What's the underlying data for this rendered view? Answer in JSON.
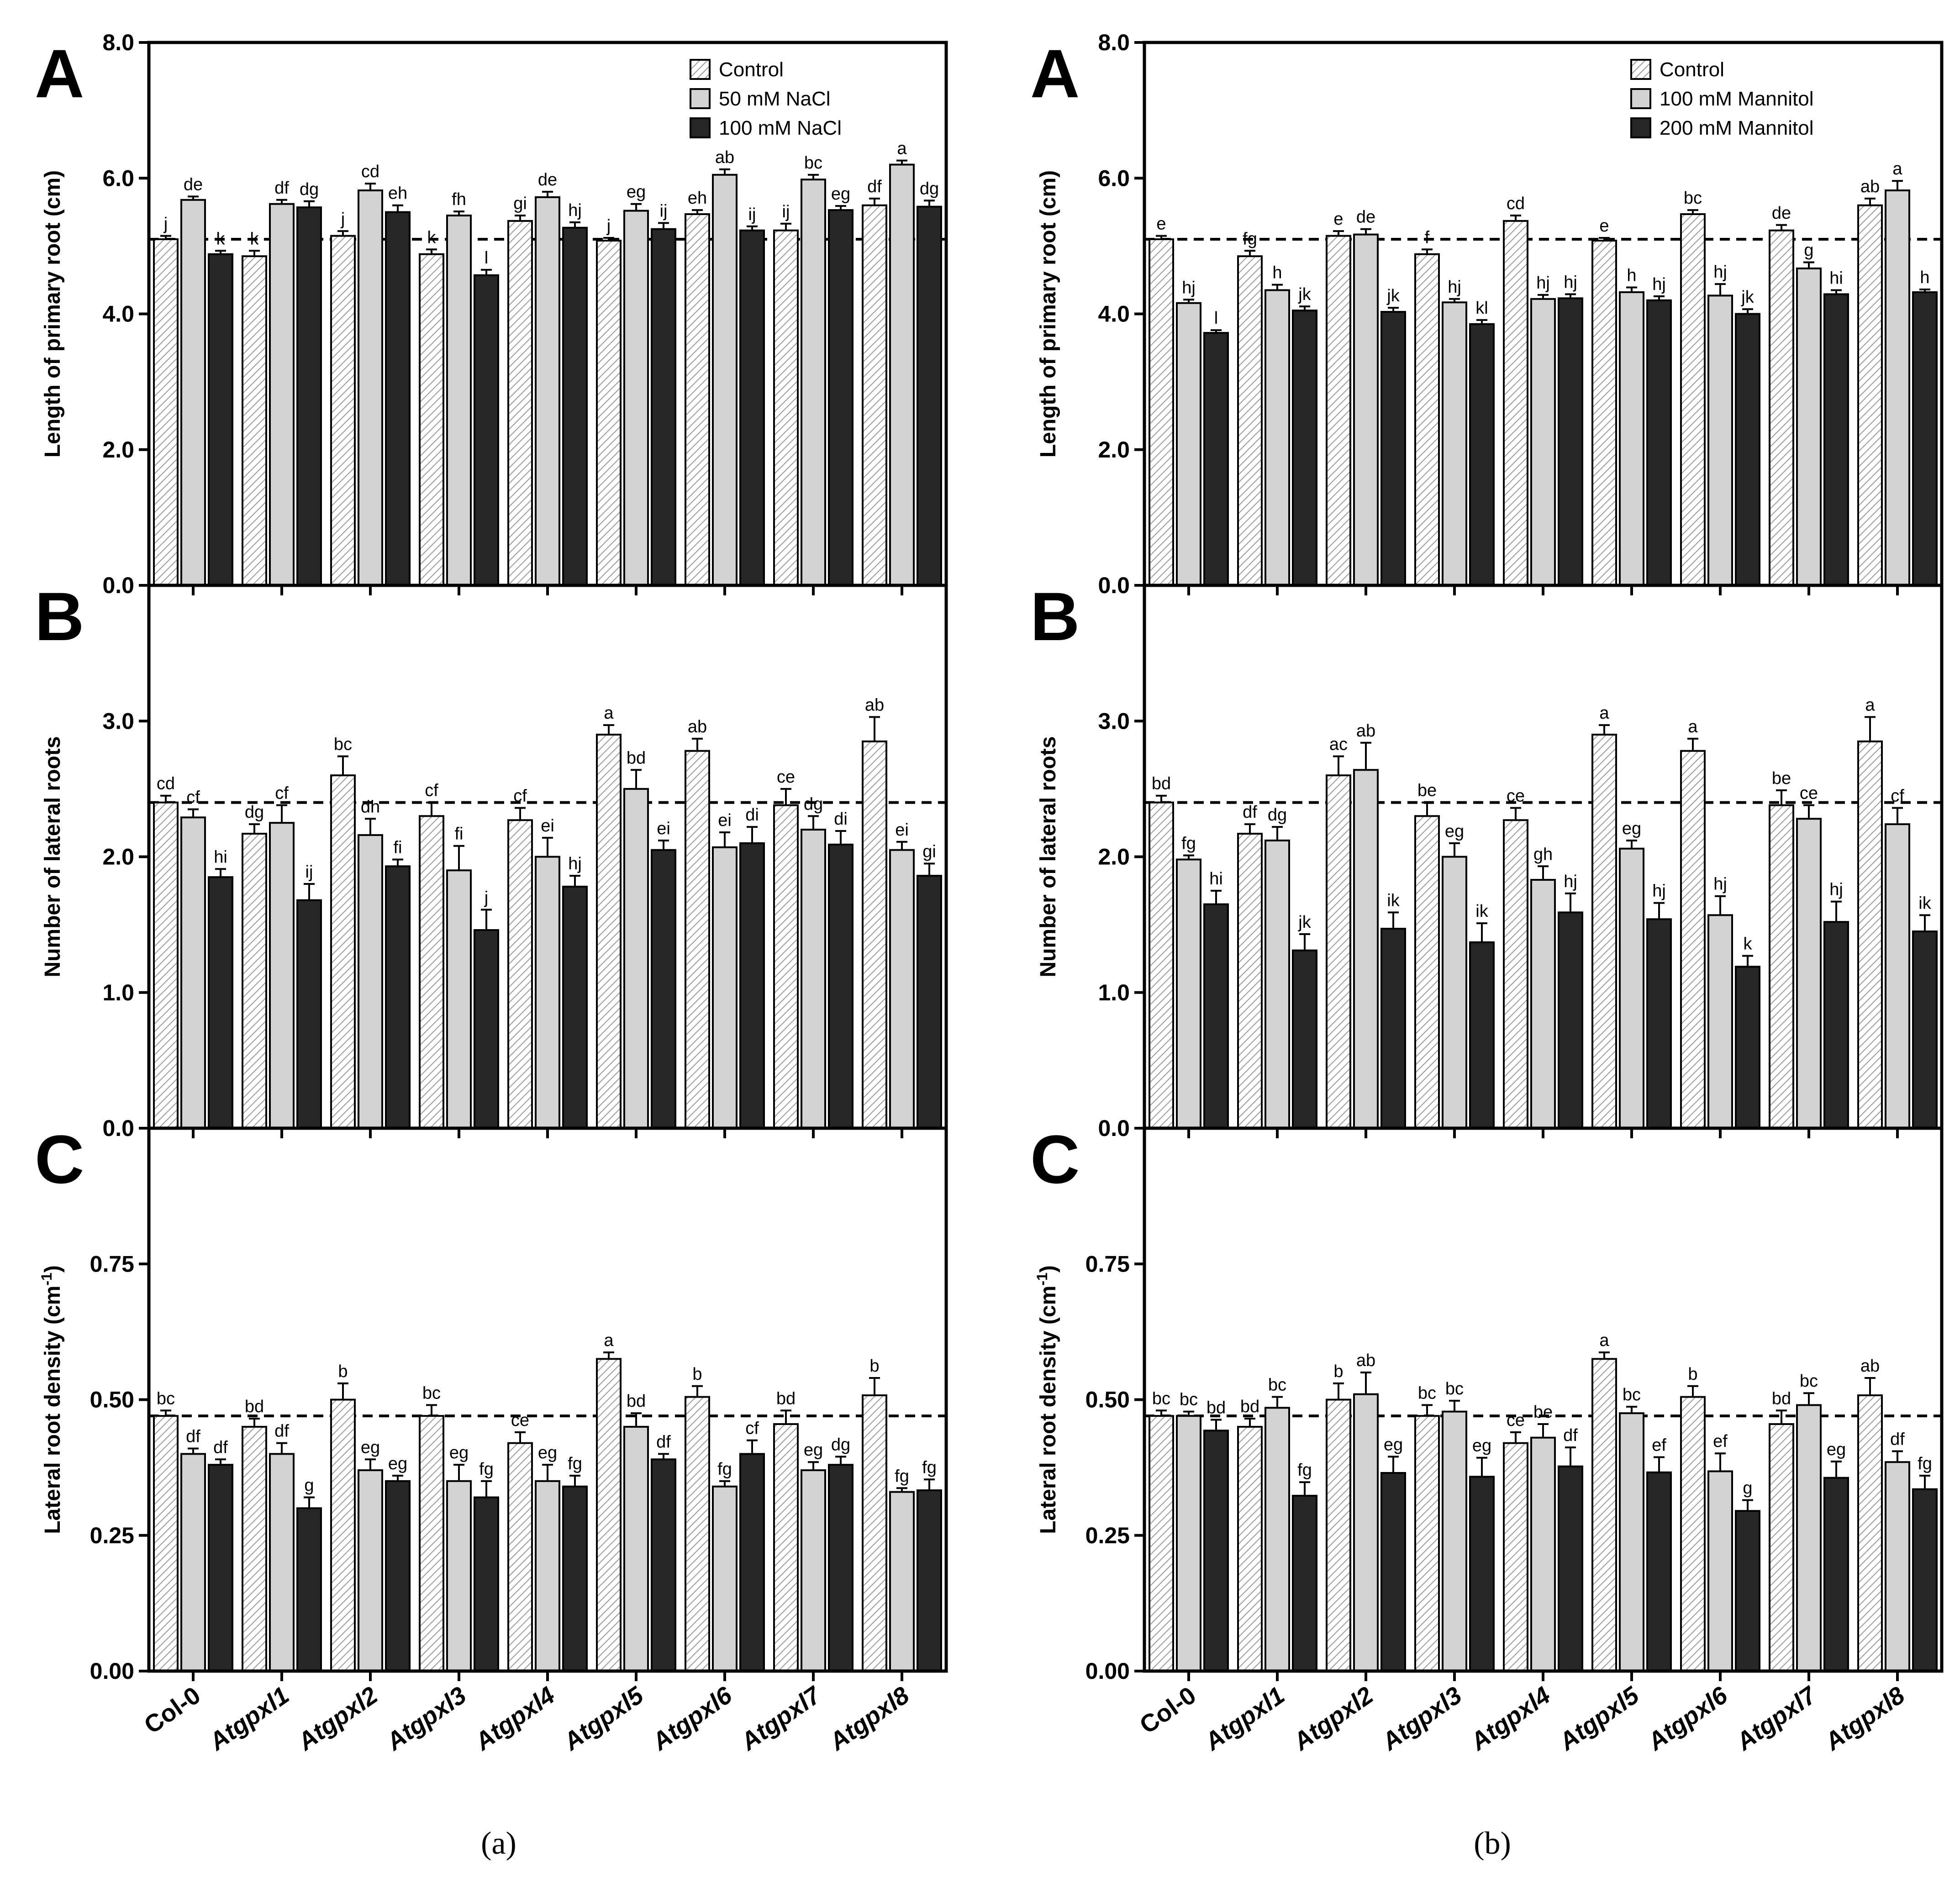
{
  "categories": [
    "Col-0",
    "Atgpxl1",
    "Atgpxl2",
    "Atgpxl3",
    "Atgpxl4",
    "Atgpxl5",
    "Atgpxl6",
    "Atgpxl7",
    "Atgpxl8"
  ],
  "panel_captions": [
    "(a)",
    "(b)"
  ],
  "colors": {
    "control": "#ffffff",
    "mid": "#d3d3d3",
    "high": "#262626",
    "hatch": "#9a9a9a",
    "axis": "#000000"
  },
  "chart_data": [
    {
      "type": "bar",
      "panel": "a",
      "letter": "A",
      "ylabel": "Length of primary root (cm)",
      "ylim": [
        0,
        8
      ],
      "yticks": [
        "0.0",
        "2.0",
        "4.0",
        "6.0",
        "8.0"
      ],
      "reference_line": 5.1,
      "legend_position": "top-right",
      "series": [
        {
          "name": "Control",
          "values": [
            5.1,
            4.85,
            5.15,
            4.88,
            5.37,
            5.08,
            5.47,
            5.23,
            5.6
          ],
          "errors": [
            0.05,
            0.08,
            0.07,
            0.07,
            0.08,
            0.04,
            0.06,
            0.1,
            0.1
          ],
          "labels": [
            "j",
            "k",
            "j",
            "k",
            "gi",
            "j",
            "eh",
            "ij",
            "df"
          ]
        },
        {
          "name": "50 mM NaCl",
          "values": [
            5.68,
            5.62,
            5.82,
            5.45,
            5.72,
            5.52,
            6.05,
            5.98,
            6.2
          ],
          "errors": [
            0.05,
            0.06,
            0.1,
            0.06,
            0.08,
            0.1,
            0.08,
            0.07,
            0.06
          ],
          "labels": [
            "de",
            "df",
            "cd",
            "fh",
            "de",
            "eg",
            "ab",
            "bc",
            "a"
          ]
        },
        {
          "name": "100 mM NaCl",
          "values": [
            4.88,
            5.57,
            5.5,
            4.57,
            5.27,
            5.25,
            5.23,
            5.53,
            5.58
          ],
          "errors": [
            0.05,
            0.09,
            0.1,
            0.08,
            0.08,
            0.09,
            0.06,
            0.06,
            0.09
          ],
          "labels": [
            "k",
            "dg",
            "eh",
            "l",
            "hj",
            "ij",
            "ij",
            "eg",
            "dg"
          ]
        }
      ]
    },
    {
      "type": "bar",
      "panel": "a",
      "letter": "B",
      "ylabel": "Number of lateral roots",
      "ylim": [
        0,
        4
      ],
      "yticks": [
        "0.0",
        "1.0",
        "2.0",
        "3.0"
      ],
      "reference_line": 2.4,
      "series": [
        {
          "name": "Control",
          "values": [
            2.4,
            2.17,
            2.6,
            2.3,
            2.27,
            2.9,
            2.78,
            2.38,
            2.85
          ],
          "errors": [
            0.05,
            0.07,
            0.14,
            0.1,
            0.09,
            0.07,
            0.09,
            0.12,
            0.18
          ],
          "labels": [
            "cd",
            "dg",
            "bc",
            "cf",
            "cf",
            "a",
            "ab",
            "ce",
            "ab"
          ]
        },
        {
          "name": "50 mM NaCl",
          "values": [
            2.29,
            2.25,
            2.16,
            1.9,
            2.0,
            2.5,
            2.07,
            2.2,
            2.05
          ],
          "errors": [
            0.06,
            0.13,
            0.12,
            0.18,
            0.14,
            0.14,
            0.11,
            0.1,
            0.06
          ],
          "labels": [
            "cf",
            "cf",
            "dh",
            "fi",
            "ei",
            "bd",
            "ei",
            "dg",
            "ei"
          ]
        },
        {
          "name": "100 mM NaCl",
          "values": [
            1.85,
            1.68,
            1.93,
            1.46,
            1.78,
            2.05,
            2.1,
            2.09,
            1.86
          ],
          "errors": [
            0.06,
            0.12,
            0.05,
            0.15,
            0.08,
            0.07,
            0.12,
            0.1,
            0.09
          ],
          "labels": [
            "hi",
            "ij",
            "fi",
            "j",
            "hj",
            "ei",
            "di",
            "di",
            "gi"
          ]
        }
      ]
    },
    {
      "type": "bar",
      "panel": "a",
      "letter": "C",
      "ylabel": "Lateral root density (cm",
      "ylabel_sup": "-1",
      "ylabel_end": ")",
      "ylim": [
        0,
        1.0
      ],
      "yticks": [
        "0.00",
        "0.25",
        "0.50",
        "0.75"
      ],
      "reference_line": 0.47,
      "series": [
        {
          "name": "Control",
          "values": [
            0.47,
            0.45,
            0.5,
            0.47,
            0.42,
            0.575,
            0.505,
            0.455,
            0.508
          ],
          "errors": [
            0.01,
            0.015,
            0.03,
            0.02,
            0.02,
            0.012,
            0.02,
            0.025,
            0.032
          ],
          "labels": [
            "bc",
            "bd",
            "b",
            "bc",
            "ce",
            "a",
            "b",
            "bd",
            "b"
          ]
        },
        {
          "name": "50 mM NaCl",
          "values": [
            0.4,
            0.4,
            0.37,
            0.35,
            0.35,
            0.45,
            0.34,
            0.37,
            0.33
          ],
          "errors": [
            0.01,
            0.02,
            0.02,
            0.03,
            0.03,
            0.025,
            0.01,
            0.015,
            0.007
          ],
          "labels": [
            "df",
            "df",
            "eg",
            "eg",
            "eg",
            "bd",
            "fg",
            "eg",
            "fg"
          ]
        },
        {
          "name": "100 mM NaCl",
          "values": [
            0.38,
            0.3,
            0.35,
            0.32,
            0.34,
            0.39,
            0.4,
            0.38,
            0.333
          ],
          "errors": [
            0.01,
            0.02,
            0.01,
            0.03,
            0.02,
            0.01,
            0.025,
            0.015,
            0.02
          ],
          "labels": [
            "df",
            "g",
            "eg",
            "fg",
            "fg",
            "df",
            "cf",
            "dg",
            "fg"
          ]
        }
      ]
    },
    {
      "type": "bar",
      "panel": "b",
      "letter": "A",
      "ylabel": "Length of primary root (cm)",
      "ylim": [
        0,
        8
      ],
      "yticks": [
        "0.0",
        "2.0",
        "4.0",
        "6.0",
        "8.0"
      ],
      "reference_line": 5.1,
      "legend_position": "top-right",
      "series": [
        {
          "name": "Control",
          "values": [
            5.1,
            4.85,
            5.15,
            4.88,
            5.37,
            5.08,
            5.47,
            5.23,
            5.6
          ],
          "errors": [
            0.05,
            0.08,
            0.07,
            0.07,
            0.08,
            0.04,
            0.06,
            0.08,
            0.1
          ],
          "labels": [
            "e",
            "fg",
            "e",
            "f",
            "cd",
            "e",
            "bc",
            "de",
            "ab"
          ]
        },
        {
          "name": "100 mM Mannitol",
          "values": [
            4.16,
            4.35,
            5.17,
            4.17,
            4.22,
            4.32,
            4.27,
            4.67,
            5.82
          ],
          "errors": [
            0.05,
            0.08,
            0.08,
            0.05,
            0.06,
            0.07,
            0.17,
            0.09,
            0.14
          ],
          "labels": [
            "hj",
            "h",
            "de",
            "hj",
            "hj",
            "h",
            "hj",
            "g",
            "a"
          ]
        },
        {
          "name": "200 mM Mannitol",
          "values": [
            3.72,
            4.05,
            4.03,
            3.85,
            4.23,
            4.2,
            4.0,
            4.29,
            4.32
          ],
          "errors": [
            0.04,
            0.06,
            0.06,
            0.06,
            0.06,
            0.06,
            0.07,
            0.06,
            0.04
          ],
          "labels": [
            "l",
            "jk",
            "jk",
            "kl",
            "hj",
            "hj",
            "jk",
            "hi",
            "h"
          ]
        }
      ]
    },
    {
      "type": "bar",
      "panel": "b",
      "letter": "B",
      "ylabel": "Number of lateral roots",
      "ylim": [
        0,
        4
      ],
      "yticks": [
        "0.0",
        "1.0",
        "2.0",
        "3.0"
      ],
      "reference_line": 2.4,
      "series": [
        {
          "name": "Control",
          "values": [
            2.4,
            2.17,
            2.6,
            2.3,
            2.27,
            2.9,
            2.78,
            2.38,
            2.85
          ],
          "errors": [
            0.05,
            0.07,
            0.14,
            0.1,
            0.09,
            0.07,
            0.09,
            0.11,
            0.18
          ],
          "labels": [
            "bd",
            "df",
            "ac",
            "be",
            "ce",
            "a",
            "a",
            "be",
            "a"
          ]
        },
        {
          "name": "100 mM Mannitol",
          "values": [
            1.98,
            2.12,
            2.64,
            2.0,
            1.83,
            2.06,
            1.57,
            2.28,
            2.24
          ],
          "errors": [
            0.03,
            0.1,
            0.2,
            0.1,
            0.1,
            0.06,
            0.14,
            0.1,
            0.12
          ],
          "labels": [
            "fg",
            "dg",
            "ab",
            "eg",
            "gh",
            "eg",
            "hj",
            "ce",
            "cf"
          ]
        },
        {
          "name": "200 mM Mannitol",
          "values": [
            1.65,
            1.31,
            1.47,
            1.37,
            1.59,
            1.54,
            1.19,
            1.52,
            1.45
          ],
          "errors": [
            0.1,
            0.12,
            0.12,
            0.14,
            0.14,
            0.12,
            0.08,
            0.15,
            0.12
          ],
          "labels": [
            "hi",
            "jk",
            "ik",
            "ik",
            "hj",
            "hj",
            "k",
            "hj",
            "ik"
          ]
        }
      ]
    },
    {
      "type": "bar",
      "panel": "b",
      "letter": "C",
      "ylabel": "Lateral root density (cm",
      "ylabel_sup": "-1",
      "ylabel_end": ")",
      "ylim": [
        0,
        1.0
      ],
      "yticks": [
        "0.00",
        "0.25",
        "0.50",
        "0.75"
      ],
      "reference_line": 0.47,
      "series": [
        {
          "name": "Control",
          "values": [
            0.47,
            0.45,
            0.5,
            0.47,
            0.42,
            0.575,
            0.505,
            0.455,
            0.508
          ],
          "errors": [
            0.01,
            0.015,
            0.03,
            0.02,
            0.02,
            0.012,
            0.02,
            0.025,
            0.032
          ],
          "labels": [
            "bc",
            "bd",
            "b",
            "bc",
            "ce",
            "a",
            "b",
            "bd",
            "ab"
          ]
        },
        {
          "name": "100 mM Mannitol",
          "values": [
            0.47,
            0.485,
            0.51,
            0.478,
            0.43,
            0.475,
            0.368,
            0.49,
            0.385
          ],
          "errors": [
            0.008,
            0.02,
            0.04,
            0.02,
            0.025,
            0.012,
            0.033,
            0.022,
            0.02
          ],
          "labels": [
            "bc",
            "bc",
            "ab",
            "bc",
            "be",
            "bc",
            "ef",
            "bc",
            "df"
          ]
        },
        {
          "name": "200 mM Mannitol",
          "values": [
            0.443,
            0.323,
            0.365,
            0.358,
            0.377,
            0.366,
            0.295,
            0.356,
            0.335
          ],
          "errors": [
            0.02,
            0.025,
            0.03,
            0.035,
            0.035,
            0.028,
            0.02,
            0.03,
            0.025
          ],
          "labels": [
            "bd",
            "fg",
            "eg",
            "eg",
            "df",
            "ef",
            "g",
            "eg",
            "fg"
          ]
        }
      ]
    }
  ]
}
